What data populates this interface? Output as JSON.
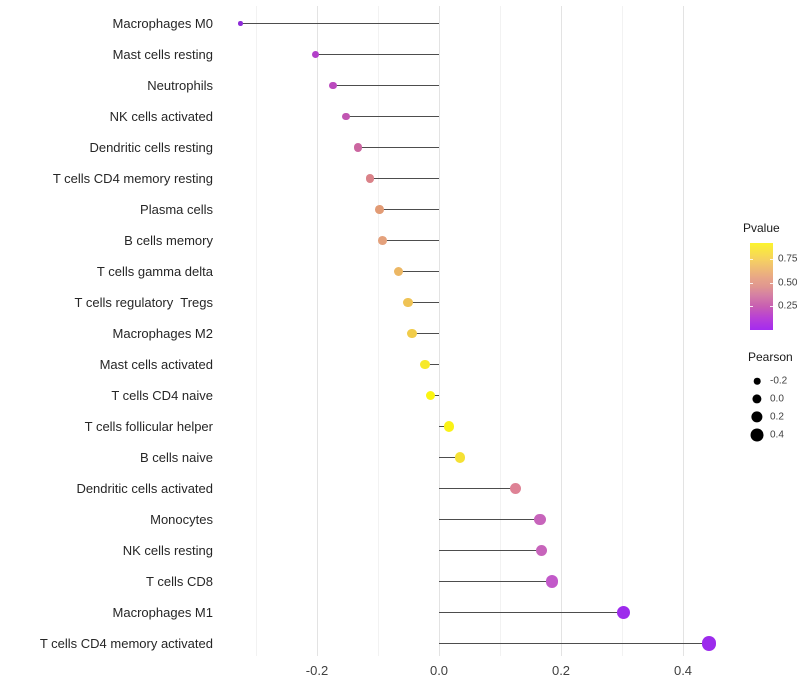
{
  "chart_data": {
    "type": "scatter",
    "variant": "lollipop",
    "title": "",
    "xlabel": "",
    "ylabel": "",
    "xlim": [
      -0.37,
      0.5
    ],
    "x_major_ticks": [
      -0.2,
      0.0,
      0.2,
      0.4
    ],
    "x_minor_ticks": [
      -0.3,
      -0.1,
      0.1,
      0.3
    ],
    "x_tick_labels": [
      "-0.2",
      "0.0",
      "0.2",
      "0.4"
    ],
    "grid": "vertical-gridlines-only",
    "legend_position": "right",
    "rows": [
      {
        "label": "Macrophages M0",
        "pearson": -0.325,
        "pvalue_estimated": 0.05,
        "color": "#8E2BD8"
      },
      {
        "label": "Mast cells resting",
        "pearson": -0.203,
        "pvalue_estimated": 0.18,
        "color": "#B23FC9"
      },
      {
        "label": "Neutrophils",
        "pearson": -0.174,
        "pvalue_estimated": 0.22,
        "color": "#BB4ABE"
      },
      {
        "label": "NK cells activated",
        "pearson": -0.152,
        "pvalue_estimated": 0.26,
        "color": "#C156B2"
      },
      {
        "label": "Dendritic cells resting",
        "pearson": -0.133,
        "pvalue_estimated": 0.32,
        "color": "#CB66A0"
      },
      {
        "label": "T cells CD4 memory resting",
        "pearson": -0.113,
        "pvalue_estimated": 0.42,
        "color": "#DA8289"
      },
      {
        "label": "Plasma cells",
        "pearson": -0.098,
        "pvalue_estimated": 0.52,
        "color": "#E29B75"
      },
      {
        "label": "B cells memory",
        "pearson": -0.092,
        "pvalue_estimated": 0.55,
        "color": "#E4A17C"
      },
      {
        "label": "T cells gamma delta",
        "pearson": -0.067,
        "pvalue_estimated": 0.65,
        "color": "#ECB764"
      },
      {
        "label": "T cells regulatory  Tregs",
        "pearson": -0.051,
        "pvalue_estimated": 0.7,
        "color": "#EFC355"
      },
      {
        "label": "Macrophages M2",
        "pearson": -0.044,
        "pvalue_estimated": 0.73,
        "color": "#F1CC4A"
      },
      {
        "label": "Mast cells activated",
        "pearson": -0.023,
        "pvalue_estimated": 0.85,
        "color": "#F7E92A"
      },
      {
        "label": "T cells CD4 naive",
        "pearson": -0.014,
        "pvalue_estimated": 0.91,
        "color": "#FBF511"
      },
      {
        "label": "T cells follicular helper",
        "pearson": 0.017,
        "pvalue_estimated": 0.9,
        "color": "#FAF216"
      },
      {
        "label": "B cells naive",
        "pearson": 0.034,
        "pvalue_estimated": 0.8,
        "color": "#F5E134"
      },
      {
        "label": "Dendritic cells activated",
        "pearson": 0.125,
        "pvalue_estimated": 0.45,
        "color": "#DE8295"
      },
      {
        "label": "Monocytes",
        "pearson": 0.165,
        "pvalue_estimated": 0.3,
        "color": "#C764BB"
      },
      {
        "label": "NK cells resting",
        "pearson": 0.168,
        "pvalue_estimated": 0.3,
        "color": "#C764BB"
      },
      {
        "label": "T cells CD8",
        "pearson": 0.185,
        "pvalue_estimated": 0.27,
        "color": "#C259C9"
      },
      {
        "label": "Macrophages M1",
        "pearson": 0.302,
        "pvalue_estimated": 0.04,
        "color": "#9D2BEC"
      },
      {
        "label": "T cells CD4 memory activated",
        "pearson": 0.443,
        "pvalue_estimated": 0.03,
        "color": "#9C2BEC"
      }
    ],
    "legends": {
      "pvalue": {
        "title": "Pvalue",
        "tick_labels": [
          "0.75",
          "0.50",
          "0.25"
        ],
        "tick_values": [
          0.75,
          0.5,
          0.25
        ],
        "bar_value_range": [
          0,
          0.92
        ],
        "gradient_stops": [
          {
            "pos": 0.0,
            "color": "#A42BF0"
          },
          {
            "pos": 0.14,
            "color": "#B840D6"
          },
          {
            "pos": 0.27,
            "color": "#C85EB2"
          },
          {
            "pos": 0.4,
            "color": "#D580A4"
          },
          {
            "pos": 0.5,
            "color": "#E09690"
          },
          {
            "pos": 0.6,
            "color": "#E8A687"
          },
          {
            "pos": 0.8,
            "color": "#F5CF63"
          },
          {
            "pos": 1.0,
            "color": "#FCF42E"
          }
        ]
      },
      "pearson": {
        "title": "Pearson",
        "labels": [
          "-0.2",
          "0.0",
          "0.2",
          "0.4"
        ],
        "values": [
          -0.2,
          0.0,
          0.2,
          0.4
        ],
        "dot_color": "#000000"
      }
    },
    "style": {
      "grid_major": "#e3e3e3",
      "grid_minor": "#f2f2f2",
      "stick_color": "#4d4d4d",
      "axis_text_color": "#404040",
      "background": "#ffffff"
    }
  }
}
